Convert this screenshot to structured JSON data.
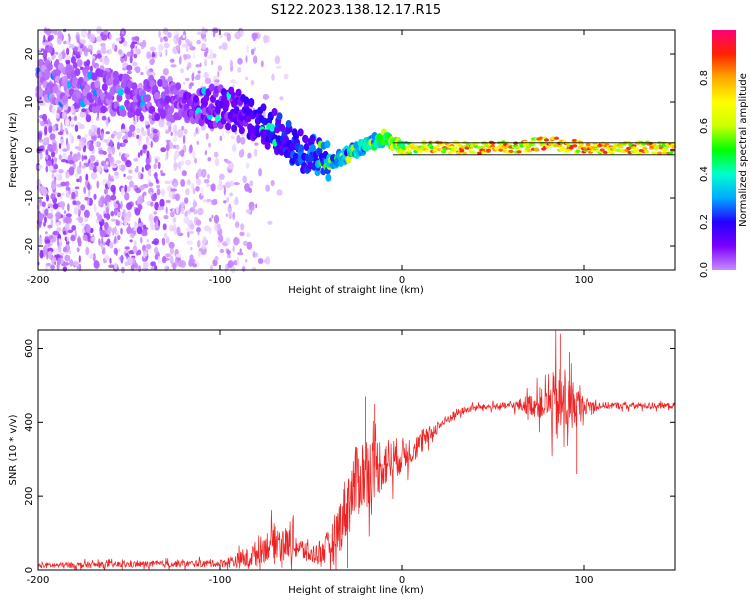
{
  "title": "S122.2023.138.12.17.R15",
  "chart_data": [
    {
      "type": "heatmap",
      "xlabel": "Height of straight line (km)",
      "ylabel": "Frequency (Hz)",
      "xlim": [
        -200,
        150
      ],
      "ylim": [
        -25,
        25
      ],
      "x_ticks": [
        -200,
        -100,
        0,
        100
      ],
      "y_ticks": [
        -20,
        -10,
        0,
        10,
        20
      ],
      "colorbar": {
        "label": "Normalized spectral amplitude",
        "range": [
          0,
          1
        ],
        "ticks": [
          "0.0",
          "0.2",
          "0.4",
          "0.6",
          "0.8"
        ],
        "colors": [
          "#ffffff",
          "#c98bff",
          "#7a00ff",
          "#2200ff",
          "#00aaff",
          "#00ffcc",
          "#00ff00",
          "#ccff00",
          "#ffff00",
          "#ffaa00",
          "#ff2200",
          "#ff0077"
        ]
      },
      "reference_lines_y": [
        -1,
        1.5
      ],
      "ridge": {
        "x": [
          -200,
          -180,
          -160,
          -140,
          -120,
          -100,
          -90,
          -80,
          -70,
          -60,
          -50,
          -40,
          -30,
          -20,
          -10,
          0,
          20,
          40,
          60,
          80,
          100,
          120,
          150
        ],
        "y": [
          15,
          13,
          12,
          11,
          10,
          9,
          8,
          6,
          4,
          1,
          -1,
          -2.5,
          -1,
          1,
          2.5,
          0.5,
          0.5,
          0.5,
          0.5,
          1.5,
          0.5,
          0.5,
          0.5
        ],
        "amplitude": [
          0.12,
          0.14,
          0.16,
          0.16,
          0.18,
          0.22,
          0.24,
          0.28,
          0.3,
          0.33,
          0.36,
          0.42,
          0.45,
          0.5,
          0.6,
          0.78,
          0.9,
          0.92,
          0.92,
          0.95,
          0.92,
          0.92,
          0.9
        ]
      }
    },
    {
      "type": "line",
      "xlabel": "Height of straight line (km)",
      "ylabel": "SNR (10 * v/v)",
      "xlim": [
        -200,
        150
      ],
      "ylim": [
        0,
        650
      ],
      "x_ticks": [
        -200,
        -100,
        0,
        100
      ],
      "y_ticks": [
        0,
        200,
        400,
        600
      ],
      "color": "#ee2222",
      "baseline": {
        "x": [
          -200,
          -150,
          -100,
          -85,
          -70,
          -60,
          -50,
          -40,
          -35,
          -30,
          -25,
          -20,
          -15,
          -10,
          -5,
          0,
          10,
          20,
          30,
          40,
          60,
          80,
          100,
          120,
          150
        ],
        "y": [
          12,
          15,
          18,
          30,
          80,
          70,
          40,
          60,
          110,
          180,
          240,
          270,
          280,
          290,
          300,
          310,
          340,
          390,
          425,
          440,
          445,
          450,
          445,
          445,
          445
        ]
      },
      "noise_amplitude": {
        "x": [
          -200,
          -100,
          -85,
          -70,
          -60,
          -50,
          -40,
          -30,
          -20,
          -10,
          0,
          10,
          20,
          40,
          60,
          80,
          85,
          90,
          95,
          100,
          110,
          150
        ],
        "y": [
          10,
          12,
          35,
          60,
          50,
          30,
          60,
          120,
          130,
          90,
          60,
          40,
          20,
          10,
          12,
          60,
          140,
          110,
          80,
          30,
          12,
          10
        ]
      },
      "spikes": [
        [
          -20,
          470
        ],
        [
          -30,
          5
        ],
        [
          -15,
          450
        ],
        [
          87,
          640
        ],
        [
          92,
          590
        ],
        [
          96,
          260
        ],
        [
          84,
          480
        ]
      ]
    }
  ]
}
